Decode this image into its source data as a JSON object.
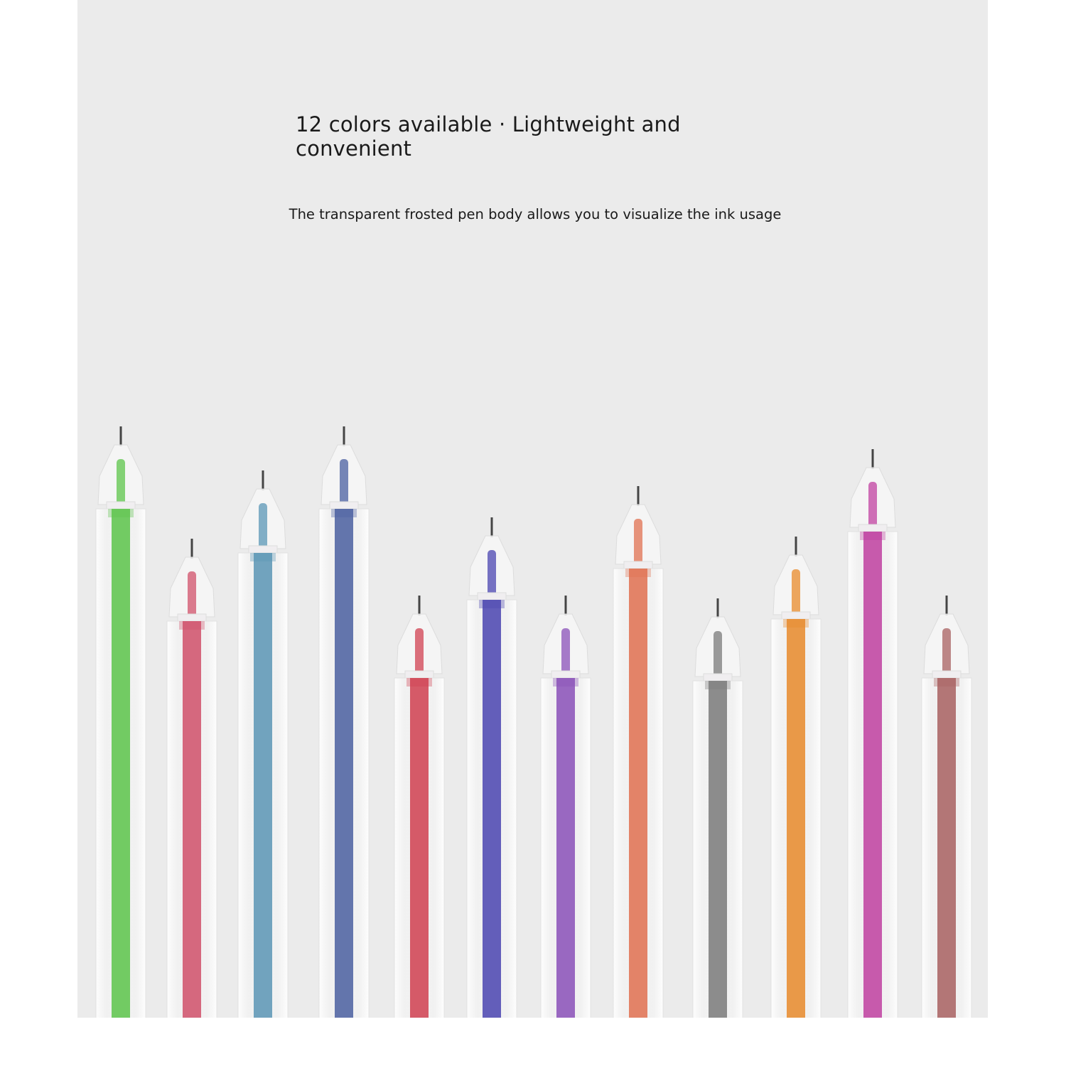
{
  "headline": "12 colors available · Lightweight and convenient",
  "subline": "The transparent frosted pen body allows you to visualize the ink usage",
  "colors": {
    "background": "#ebebeb",
    "page": "#ffffff"
  },
  "pens": [
    {
      "name": "green",
      "ink": "#5cc44a"
    },
    {
      "name": "pink",
      "ink": "#d0506a"
    },
    {
      "name": "teal-blue",
      "ink": "#5a95b5"
    },
    {
      "name": "blue",
      "ink": "#4a5fa0"
    },
    {
      "name": "red",
      "ink": "#d04050"
    },
    {
      "name": "indigo",
      "ink": "#4a44b0"
    },
    {
      "name": "purple",
      "ink": "#8a50b8"
    },
    {
      "name": "salmon-orange",
      "ink": "#e07050"
    },
    {
      "name": "gray",
      "ink": "#7a7a7a"
    },
    {
      "name": "orange",
      "ink": "#e88a2a"
    },
    {
      "name": "magenta",
      "ink": "#c040a0"
    },
    {
      "name": "brown",
      "ink": "#a86060"
    }
  ]
}
